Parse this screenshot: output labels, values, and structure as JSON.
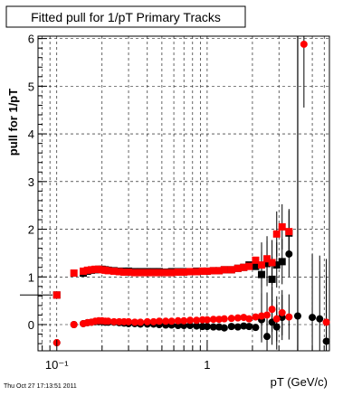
{
  "chart_data": {
    "type": "scatter",
    "title": "Fitted pull for 1/pT  Primary Tracks",
    "xlabel": "pT (GeV/c)",
    "ylabel": "pull for 1/pT",
    "xscale": "log",
    "xlim": [
      0.075,
      6.5
    ],
    "ylim": [
      -0.55,
      6.05
    ],
    "grid": true,
    "x_major_ticks": [
      {
        "value": 0.1,
        "label": "10⁻¹"
      },
      {
        "value": 1,
        "label": "1"
      }
    ],
    "y_ticks": [
      0,
      1,
      2,
      3,
      4,
      5,
      6
    ],
    "footer": "Thu Oct 27 17:13:51 2011",
    "series": [
      {
        "name": "",
        "color": "#000000",
        "marker": "square",
        "x": [
          0.1,
          0.15,
          0.16,
          0.17,
          0.18,
          0.19,
          0.2,
          0.21,
          0.22,
          0.24,
          0.26,
          0.28,
          0.3,
          0.33,
          0.36,
          0.4,
          0.44,
          0.48,
          0.53,
          0.58,
          0.64,
          0.7,
          0.77,
          0.85,
          0.93,
          1.0,
          1.1,
          1.2,
          1.3,
          1.45,
          1.6,
          1.75,
          1.9,
          2.1,
          2.3,
          2.5,
          2.7,
          2.9,
          3.15,
          3.5
        ],
        "y": [
          0.62,
          1.08,
          1.12,
          1.14,
          1.15,
          1.16,
          1.16,
          1.15,
          1.14,
          1.13,
          1.12,
          1.12,
          1.12,
          1.11,
          1.11,
          1.11,
          1.11,
          1.11,
          1.1,
          1.11,
          1.11,
          1.11,
          1.11,
          1.12,
          1.12,
          1.12,
          1.13,
          1.13,
          1.15,
          1.15,
          1.18,
          1.2,
          1.25,
          1.22,
          1.05,
          1.28,
          0.95,
          1.25,
          1.32,
          1.92
        ]
      },
      {
        "name": "",
        "color": "#ff0000",
        "marker": "square",
        "x": [
          0.1,
          0.13,
          0.15,
          0.16,
          0.17,
          0.18,
          0.19,
          0.2,
          0.21,
          0.22,
          0.24,
          0.26,
          0.28,
          0.3,
          0.33,
          0.36,
          0.4,
          0.44,
          0.48,
          0.53,
          0.58,
          0.64,
          0.7,
          0.77,
          0.85,
          0.93,
          1.0,
          1.1,
          1.2,
          1.3,
          1.45,
          1.6,
          1.75,
          1.9,
          2.1,
          2.3,
          2.5,
          2.7,
          2.9,
          3.15,
          3.5
        ],
        "y": [
          0.62,
          1.08,
          1.12,
          1.14,
          1.15,
          1.16,
          1.16,
          1.15,
          1.14,
          1.13,
          1.12,
          1.11,
          1.1,
          1.1,
          1.09,
          1.09,
          1.09,
          1.09,
          1.09,
          1.09,
          1.09,
          1.1,
          1.1,
          1.11,
          1.11,
          1.12,
          1.12,
          1.13,
          1.13,
          1.15,
          1.15,
          1.18,
          1.2,
          1.22,
          1.35,
          1.25,
          1.38,
          1.3,
          1.9,
          2.05,
          1.95
        ]
      },
      {
        "name": "",
        "color": "#000000",
        "marker": "circle",
        "x": [
          0.1,
          0.13,
          0.15,
          0.16,
          0.17,
          0.18,
          0.19,
          0.2,
          0.21,
          0.22,
          0.24,
          0.26,
          0.28,
          0.3,
          0.33,
          0.36,
          0.4,
          0.44,
          0.48,
          0.53,
          0.58,
          0.64,
          0.7,
          0.77,
          0.85,
          0.93,
          1.0,
          1.1,
          1.2,
          1.3,
          1.45,
          1.6,
          1.75,
          1.9,
          2.1,
          2.3,
          2.5,
          2.7,
          2.9,
          3.15,
          3.5,
          4.0,
          5.0,
          5.6,
          6.2
        ],
        "y": [
          -0.38,
          0.0,
          0.02,
          0.04,
          0.05,
          0.06,
          0.06,
          0.06,
          0.05,
          0.05,
          0.05,
          0.04,
          0.03,
          0.02,
          0.02,
          0.01,
          0.01,
          0.01,
          0.0,
          -0.01,
          -0.01,
          -0.02,
          -0.02,
          -0.02,
          -0.03,
          -0.04,
          -0.04,
          -0.05,
          -0.05,
          -0.07,
          -0.04,
          -0.05,
          -0.03,
          -0.04,
          -0.06,
          0.1,
          -0.25,
          0.05,
          -0.05,
          0.15,
          1.48,
          0.18,
          0.15,
          0.12,
          -0.35
        ]
      },
      {
        "name": "",
        "color": "#ff0000",
        "marker": "circle",
        "x": [
          0.1,
          0.13,
          0.15,
          0.16,
          0.17,
          0.18,
          0.19,
          0.2,
          0.21,
          0.22,
          0.24,
          0.26,
          0.28,
          0.3,
          0.33,
          0.36,
          0.4,
          0.44,
          0.48,
          0.53,
          0.58,
          0.64,
          0.7,
          0.77,
          0.85,
          0.93,
          1.0,
          1.1,
          1.2,
          1.3,
          1.45,
          1.6,
          1.75,
          1.9,
          2.1,
          2.3,
          2.5,
          2.7,
          2.9,
          3.15,
          3.5,
          4.4,
          6.2
        ],
        "y": [
          -0.38,
          0.0,
          0.02,
          0.04,
          0.05,
          0.07,
          0.08,
          0.08,
          0.07,
          0.07,
          0.06,
          0.06,
          0.06,
          0.06,
          0.05,
          0.05,
          0.06,
          0.06,
          0.07,
          0.07,
          0.07,
          0.08,
          0.08,
          0.09,
          0.09,
          0.1,
          0.1,
          0.11,
          0.11,
          0.12,
          0.13,
          0.14,
          0.15,
          0.12,
          0.16,
          0.18,
          0.2,
          0.32,
          0.12,
          0.25,
          0.16,
          5.88,
          0.05
        ]
      }
    ]
  }
}
